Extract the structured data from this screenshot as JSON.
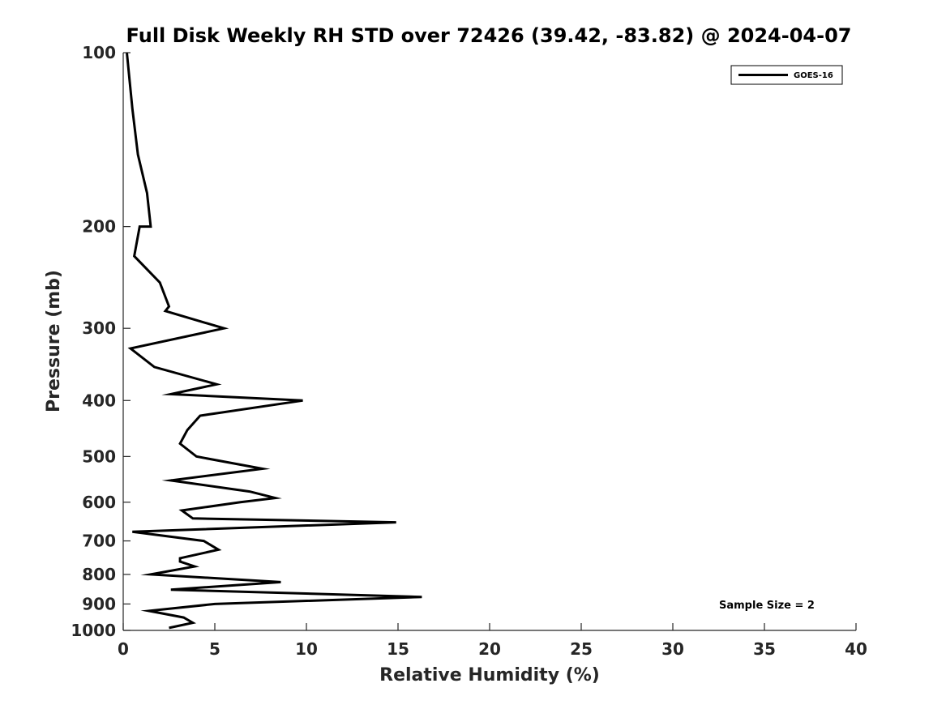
{
  "chart_data": {
    "type": "line",
    "title": "Full Disk Weekly RH STD over 72426 (39.42, -83.82) @ 2024-04-07",
    "xlabel": "Relative Humidity (%)",
    "ylabel": "Pressure (mb)",
    "xlim": [
      0,
      40
    ],
    "ylim": [
      100,
      1000
    ],
    "y_scale": "log",
    "y_inverted": true,
    "x_ticks": [
      0,
      5,
      10,
      15,
      20,
      25,
      30,
      35,
      40
    ],
    "y_ticks": [
      100,
      200,
      300,
      400,
      500,
      600,
      700,
      800,
      900,
      1000
    ],
    "grid": false,
    "legend_position": "top-right",
    "annotation": "Sample Size = 2",
    "series": [
      {
        "name": "GOES-16",
        "color": "#000000",
        "points": [
          [
            0.2,
            100
          ],
          [
            0.5,
            125
          ],
          [
            0.8,
            150
          ],
          [
            1.3,
            175
          ],
          [
            1.5,
            200
          ],
          [
            0.9,
            200
          ],
          [
            0.6,
            225
          ],
          [
            2.0,
            250
          ],
          [
            2.5,
            275
          ],
          [
            2.3,
            280
          ],
          [
            5.5,
            300
          ],
          [
            0.4,
            325
          ],
          [
            1.7,
            350
          ],
          [
            5.1,
            375
          ],
          [
            2.6,
            390
          ],
          [
            9.8,
            400
          ],
          [
            4.2,
            425
          ],
          [
            3.5,
            450
          ],
          [
            3.1,
            475
          ],
          [
            4.0,
            500
          ],
          [
            7.6,
            525
          ],
          [
            2.6,
            550
          ],
          [
            6.9,
            575
          ],
          [
            8.3,
            590
          ],
          [
            6.4,
            600
          ],
          [
            3.2,
            620
          ],
          [
            3.8,
            640
          ],
          [
            14.9,
            650
          ],
          [
            0.5,
            675
          ],
          [
            4.4,
            700
          ],
          [
            5.2,
            725
          ],
          [
            3.1,
            750
          ],
          [
            3.1,
            760
          ],
          [
            3.9,
            775
          ],
          [
            1.5,
            800
          ],
          [
            8.6,
            825
          ],
          [
            2.6,
            850
          ],
          [
            16.3,
            875
          ],
          [
            5.0,
            900
          ],
          [
            1.4,
            925
          ],
          [
            3.3,
            950
          ],
          [
            3.8,
            970
          ],
          [
            2.5,
            990
          ]
        ]
      }
    ]
  }
}
